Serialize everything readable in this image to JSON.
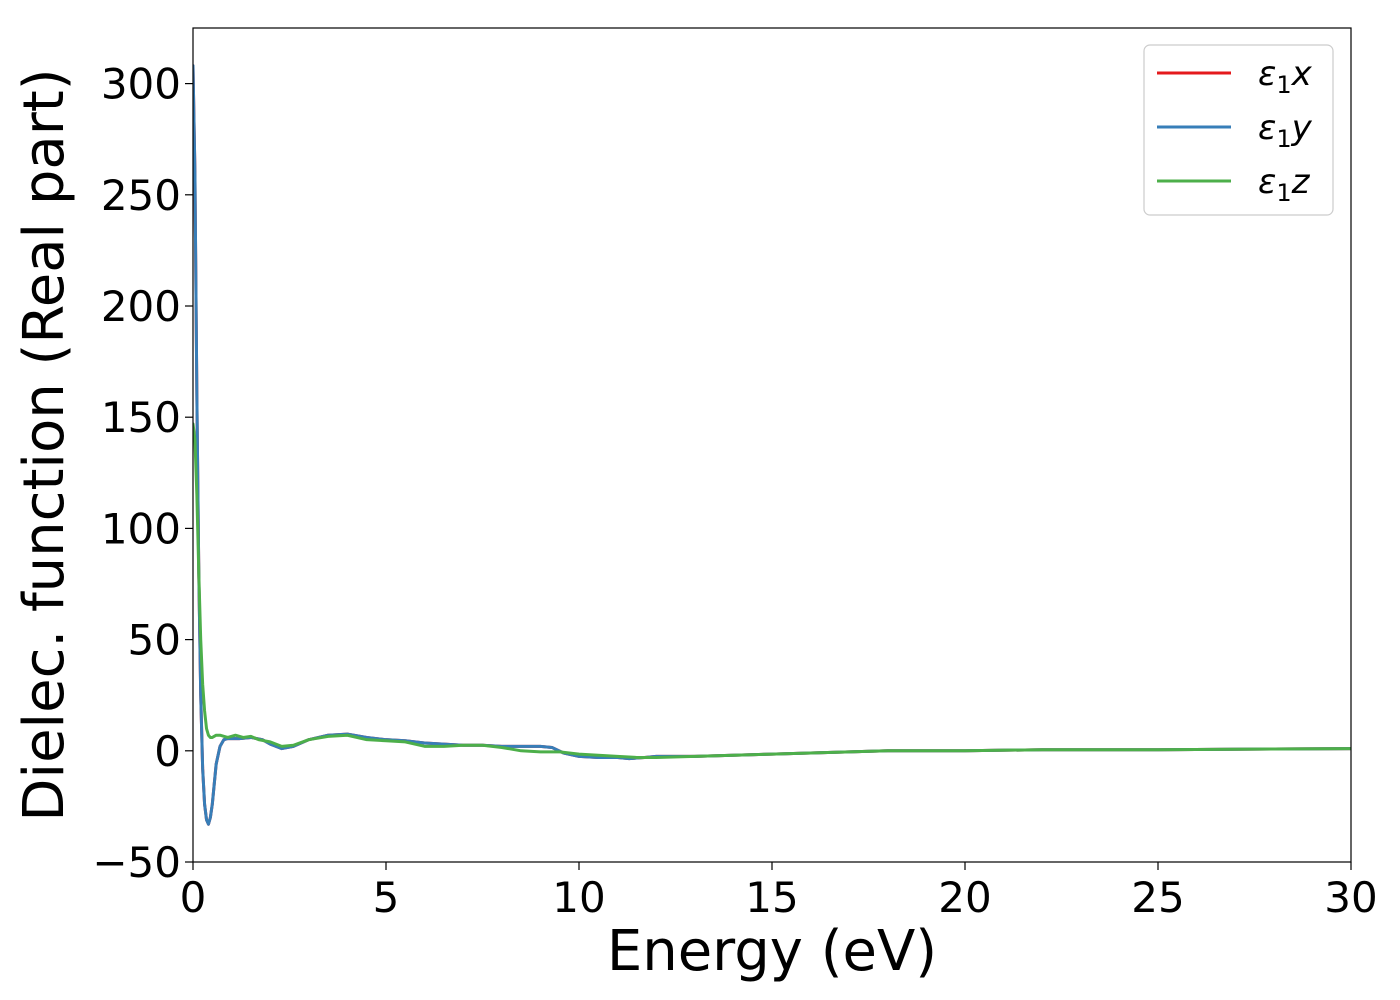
{
  "chart_data": {
    "type": "line",
    "title": "",
    "xlabel": "Energy (eV)",
    "ylabel": "Dielec. function (Real part)",
    "xlim": [
      0,
      30
    ],
    "ylim": [
      -50,
      325
    ],
    "xticks": [
      0,
      5,
      10,
      15,
      20,
      25,
      30
    ],
    "xtick_labels": [
      "0",
      "5",
      "10",
      "15",
      "20",
      "25",
      "30"
    ],
    "yticks": [
      -50,
      0,
      50,
      100,
      150,
      200,
      250,
      300
    ],
    "ytick_labels": [
      "−50",
      "0",
      "50",
      "100",
      "150",
      "200",
      "250",
      "300"
    ],
    "grid": false,
    "legend_position": "top-right",
    "series": [
      {
        "name": "ε₁x",
        "legend_base": "ε",
        "legend_sub": "1",
        "legend_suffix": "x",
        "color": "#e41a1c",
        "x": [
          0,
          0.05,
          0.1,
          0.15,
          0.2,
          0.25,
          0.3,
          0.35,
          0.4,
          0.45,
          0.5,
          0.55,
          0.6,
          0.7,
          0.8,
          0.9,
          1.0,
          1.2,
          1.5,
          1.8,
          2.0,
          2.3,
          2.6,
          3.0,
          3.5,
          4.0,
          4.5,
          5.0,
          5.5,
          6.0,
          6.5,
          7.0,
          7.5,
          8.0,
          8.5,
          9.0,
          9.3,
          9.6,
          10.0,
          10.5,
          11.0,
          11.3,
          11.7,
          12.0,
          13.0,
          14.0,
          15.0,
          16.0,
          17.0,
          18.0,
          20.0,
          22.0,
          25.0,
          28.0,
          30.0
        ],
        "y": [
          308,
          260,
          160,
          80,
          25,
          -8,
          -24,
          -31,
          -33,
          -30,
          -24,
          -15,
          -6,
          2,
          5,
          5.5,
          5.5,
          5.5,
          6,
          5,
          3,
          1,
          2,
          5,
          7,
          7.5,
          6,
          5,
          4.5,
          3.5,
          3,
          2.5,
          2.5,
          2,
          2,
          2,
          1.5,
          -1,
          -2.5,
          -3,
          -3,
          -3.5,
          -3,
          -2.5,
          -2.5,
          -2,
          -1.5,
          -1,
          -0.5,
          0,
          0,
          0.5,
          0.5,
          0.8,
          1
        ]
      },
      {
        "name": "ε₁y",
        "legend_base": "ε",
        "legend_sub": "1",
        "legend_suffix": "y",
        "color": "#377eb8",
        "x": [
          0,
          0.05,
          0.1,
          0.15,
          0.2,
          0.25,
          0.3,
          0.35,
          0.4,
          0.45,
          0.5,
          0.55,
          0.6,
          0.7,
          0.8,
          0.9,
          1.0,
          1.2,
          1.5,
          1.8,
          2.0,
          2.3,
          2.6,
          3.0,
          3.5,
          4.0,
          4.5,
          5.0,
          5.5,
          6.0,
          6.5,
          7.0,
          7.5,
          8.0,
          8.5,
          9.0,
          9.3,
          9.6,
          10.0,
          10.5,
          11.0,
          11.3,
          11.7,
          12.0,
          13.0,
          14.0,
          15.0,
          16.0,
          17.0,
          18.0,
          20.0,
          22.0,
          25.0,
          28.0,
          30.0
        ],
        "y": [
          308,
          260,
          160,
          80,
          25,
          -8,
          -24,
          -31,
          -33,
          -30,
          -24,
          -15,
          -6,
          2,
          5,
          5.5,
          5.5,
          5.5,
          6,
          5,
          3,
          1,
          2,
          5,
          7,
          7.5,
          6,
          5,
          4.5,
          3.5,
          3,
          2.5,
          2.5,
          2,
          2,
          2,
          1.5,
          -1,
          -2.5,
          -3,
          -3,
          -3.5,
          -3,
          -2.5,
          -2.5,
          -2,
          -1.5,
          -1,
          -0.5,
          0,
          0,
          0.5,
          0.5,
          0.8,
          1
        ]
      },
      {
        "name": "ε₁z",
        "legend_base": "ε",
        "legend_sub": "1",
        "legend_suffix": "z",
        "color": "#4daf4a",
        "x": [
          0,
          0.05,
          0.1,
          0.15,
          0.2,
          0.25,
          0.3,
          0.35,
          0.4,
          0.45,
          0.5,
          0.6,
          0.7,
          0.9,
          1.1,
          1.3,
          1.5,
          1.7,
          2.0,
          2.3,
          2.6,
          3.0,
          3.5,
          4.0,
          4.5,
          5.0,
          5.5,
          6.0,
          6.5,
          7.0,
          7.5,
          8.0,
          8.5,
          9.0,
          9.5,
          10.0,
          10.5,
          11.0,
          11.5,
          12.0,
          13.0,
          14.0,
          15.0,
          16.0,
          17.0,
          18.0,
          20.0,
          22.0,
          25.0,
          28.0,
          30.0
        ],
        "y": [
          147,
          140,
          115,
          80,
          50,
          30,
          18,
          10,
          7,
          6,
          6,
          7,
          7,
          6,
          7,
          6,
          6.5,
          5,
          4,
          2,
          2.5,
          5,
          6.5,
          7,
          5,
          4.5,
          4,
          2,
          2,
          2.5,
          2.5,
          1.5,
          0,
          -0.5,
          -0.5,
          -1.5,
          -2,
          -2.5,
          -3,
          -3,
          -2.5,
          -2,
          -1.5,
          -1,
          -0.5,
          0,
          0,
          0.5,
          0.5,
          0.8,
          1
        ]
      }
    ]
  }
}
